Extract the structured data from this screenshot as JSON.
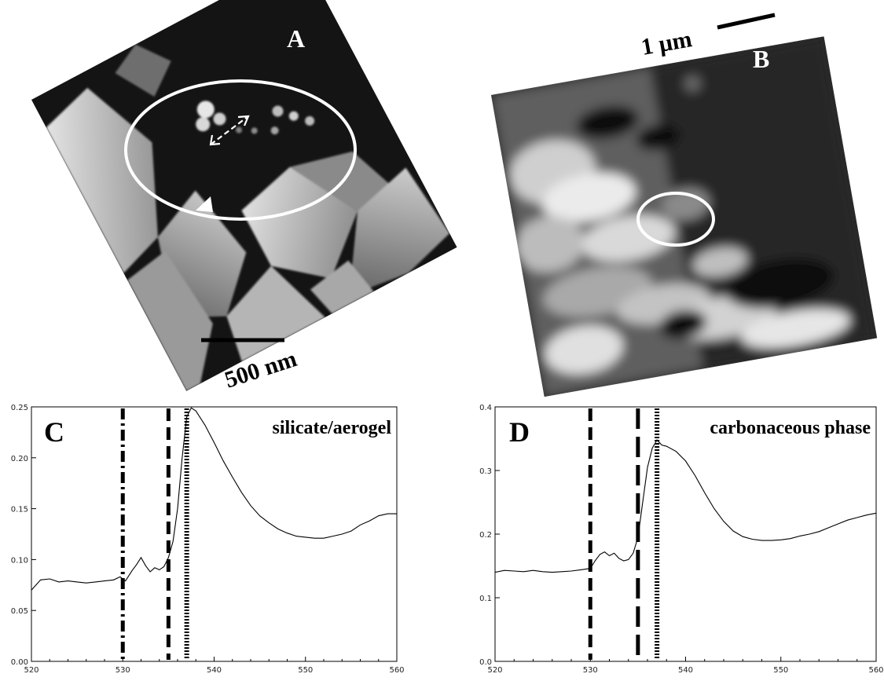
{
  "panels": {
    "A": {
      "letter": "A",
      "scale_label": "500 nm"
    },
    "B": {
      "letter": "B",
      "scale_label": "1 µm"
    }
  },
  "chart_data": [
    {
      "type": "line",
      "panel": "C",
      "letter": "C",
      "title": "silicate/aerogel",
      "xlim": [
        520,
        560
      ],
      "ylim": [
        0,
        0.25
      ],
      "xticks": [
        520,
        530,
        540,
        550,
        560
      ],
      "yticks": [
        0.0,
        0.05,
        0.1,
        0.15,
        0.2,
        0.25
      ],
      "ytick_labels": [
        "0.00",
        "0.05",
        "0.10",
        "0.15",
        "0.20",
        "0.25"
      ],
      "series": [
        {
          "x": [
            520,
            521,
            522,
            523,
            524,
            525,
            526,
            527,
            528,
            529,
            529.7,
            530.3,
            531,
            531.5,
            532,
            532.5,
            533,
            533.5,
            534,
            534.5,
            535,
            535.5,
            536,
            536.5,
            537,
            537.5,
            538,
            539,
            540,
            541,
            542,
            543,
            544,
            545,
            546,
            547,
            548,
            549,
            550,
            551,
            552,
            553,
            554,
            555,
            556,
            557,
            558,
            559,
            560
          ],
          "y": [
            0.07,
            0.08,
            0.081,
            0.078,
            0.079,
            0.078,
            0.077,
            0.078,
            0.079,
            0.08,
            0.083,
            0.079,
            0.089,
            0.095,
            0.102,
            0.094,
            0.088,
            0.092,
            0.09,
            0.093,
            0.102,
            0.118,
            0.15,
            0.2,
            0.24,
            0.249,
            0.246,
            0.232,
            0.215,
            0.197,
            0.181,
            0.166,
            0.153,
            0.143,
            0.136,
            0.13,
            0.126,
            0.123,
            0.122,
            0.121,
            0.121,
            0.123,
            0.125,
            0.128,
            0.134,
            0.138,
            0.143,
            0.145,
            0.145
          ]
        }
      ],
      "vlines": [
        {
          "x": 530.0,
          "style": "dash-dot"
        },
        {
          "x": 535.0,
          "style": "dashed"
        },
        {
          "x": 537.0,
          "style": "dotted"
        }
      ]
    },
    {
      "type": "line",
      "panel": "D",
      "letter": "D",
      "title": "carbonaceous phase",
      "xlim": [
        520,
        560
      ],
      "ylim": [
        0,
        0.4
      ],
      "xticks": [
        520,
        530,
        540,
        550,
        560
      ],
      "yticks": [
        0.0,
        0.1,
        0.2,
        0.3,
        0.4
      ],
      "ytick_labels": [
        "0.0",
        "0.1",
        "0.2",
        "0.3",
        "0.4"
      ],
      "series": [
        {
          "x": [
            520,
            521,
            522,
            523,
            524,
            525,
            526,
            527,
            528,
            529,
            530,
            530.5,
            531,
            531.5,
            532,
            532.5,
            533,
            533.5,
            534,
            534.5,
            535,
            535.5,
            536,
            536.5,
            537,
            537.5,
            538,
            539,
            540,
            541,
            542,
            543,
            544,
            545,
            546,
            547,
            548,
            549,
            550,
            551,
            552,
            553,
            554,
            555,
            556,
            557,
            558,
            559,
            560
          ],
          "y": [
            0.14,
            0.143,
            0.142,
            0.141,
            0.143,
            0.141,
            0.14,
            0.141,
            0.142,
            0.144,
            0.146,
            0.158,
            0.168,
            0.172,
            0.166,
            0.17,
            0.162,
            0.158,
            0.16,
            0.17,
            0.195,
            0.25,
            0.305,
            0.335,
            0.348,
            0.34,
            0.338,
            0.33,
            0.315,
            0.292,
            0.265,
            0.24,
            0.22,
            0.205,
            0.196,
            0.192,
            0.19,
            0.19,
            0.191,
            0.193,
            0.197,
            0.2,
            0.204,
            0.21,
            0.216,
            0.222,
            0.226,
            0.23,
            0.233
          ]
        }
      ],
      "vlines": [
        {
          "x": 530.0,
          "style": "dashed"
        },
        {
          "x": 535.0,
          "style": "long-dashed"
        },
        {
          "x": 537.0,
          "style": "dotted"
        }
      ]
    }
  ]
}
